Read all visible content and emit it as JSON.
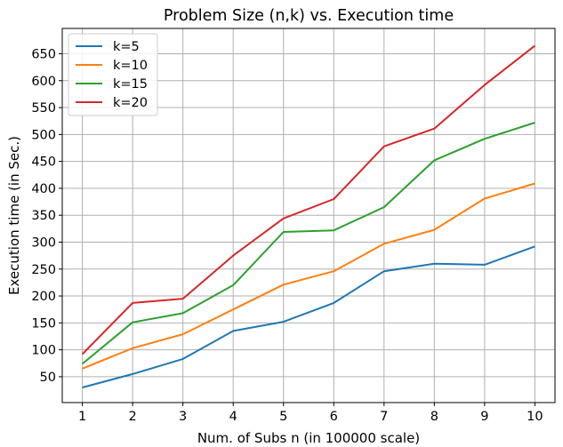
{
  "chart_data": {
    "type": "line",
    "title": "Problem Size (n,k) vs. Execution time",
    "xlabel": "Num. of Subs n (in 100000 scale)",
    "ylabel": "Execution time (in Sec.)",
    "x": [
      1,
      2,
      3,
      4,
      5,
      6,
      7,
      8,
      9,
      10
    ],
    "x_ticks": [
      1,
      2,
      3,
      4,
      5,
      6,
      7,
      8,
      9,
      10
    ],
    "y_ticks": [
      50,
      100,
      150,
      200,
      250,
      300,
      350,
      400,
      450,
      500,
      550,
      600,
      650
    ],
    "xlim": [
      0.6,
      10.4
    ],
    "ylim": [
      2,
      697
    ],
    "grid": true,
    "legend_position": "top-left",
    "series": [
      {
        "name": "k=5",
        "color": "#1f77b4",
        "values": [
          30,
          55,
          83,
          135,
          152,
          187,
          246,
          260,
          258,
          292
        ]
      },
      {
        "name": "k=10",
        "color": "#ff7f0e",
        "values": [
          65,
          103,
          129,
          175,
          221,
          246,
          297,
          323,
          381,
          409
        ]
      },
      {
        "name": "k=15",
        "color": "#2ca02c",
        "values": [
          74,
          151,
          168,
          220,
          319,
          322,
          365,
          452,
          492,
          522
        ]
      },
      {
        "name": "k=20",
        "color": "#d62728",
        "values": [
          92,
          187,
          195,
          275,
          344,
          380,
          478,
          511,
          592,
          665
        ]
      }
    ]
  }
}
